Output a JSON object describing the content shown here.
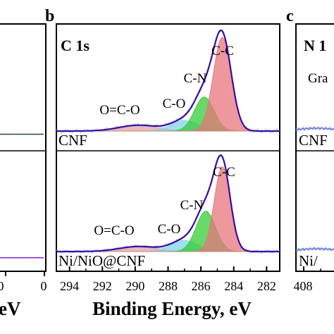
{
  "chart_data": [
    {
      "type": "line",
      "panel": "a",
      "label": "",
      "xlabel": "eV",
      "x_ticks": [
        "0",
        "0"
      ],
      "series": [
        {
          "sample": "CNF",
          "color": "#2f4f4f",
          "points": [
            [
              14,
              0.5
            ],
            [
              0,
              0.5
            ]
          ]
        },
        {
          "sample": "Ni/NiO@CNF",
          "color": "#8a2be2",
          "points": [
            [
              14,
              0.5
            ],
            [
              0,
              0.5
            ]
          ]
        }
      ]
    },
    {
      "type": "line",
      "panel": "b",
      "label": "b",
      "title": "C 1s",
      "xlabel": "Binding Energy, eV",
      "xlim": [
        294.8,
        281.2
      ],
      "x_ticks": [
        "294",
        "292",
        "290",
        "288",
        "286",
        "284",
        "282"
      ],
      "envelope_color": "#3a0ca3",
      "subpanels": [
        {
          "sample": "CNF",
          "peaks": [
            {
              "label": "C-C",
              "center": 284.7,
              "fwhm": 1.3,
              "height": 0.88,
              "color": "#e8747c"
            },
            {
              "label": "C-N",
              "center": 285.8,
              "fwhm": 1.4,
              "height": 0.32,
              "color": "#33cc33"
            },
            {
              "label": "C-O",
              "center": 287.0,
              "fwhm": 1.9,
              "height": 0.1,
              "color": "#7fd4e8"
            },
            {
              "label": "O=C-O",
              "center": 289.8,
              "fwhm": 2.8,
              "height": 0.055,
              "color": "#e8a0a0"
            }
          ]
        },
        {
          "sample": "Ni/NiO@CNF",
          "peaks": [
            {
              "label": "C-C",
              "center": 284.7,
              "fwhm": 1.15,
              "height": 0.84,
              "color": "#e8747c"
            },
            {
              "label": "C-N",
              "center": 285.7,
              "fwhm": 1.4,
              "height": 0.4,
              "color": "#33cc33"
            },
            {
              "label": "C-O",
              "center": 287.0,
              "fwhm": 1.9,
              "height": 0.11,
              "color": "#7fd4e8"
            },
            {
              "label": "O=C-O",
              "center": 289.8,
              "fwhm": 2.8,
              "height": 0.05,
              "color": "#e8a0a0"
            }
          ]
        }
      ]
    },
    {
      "type": "line",
      "panel": "c",
      "label": "c",
      "title": "N 1",
      "xlabel": "",
      "x_ticks": [
        "408"
      ],
      "visible_labels": [
        "Gra",
        "CNF",
        "Ni/"
      ]
    }
  ]
}
